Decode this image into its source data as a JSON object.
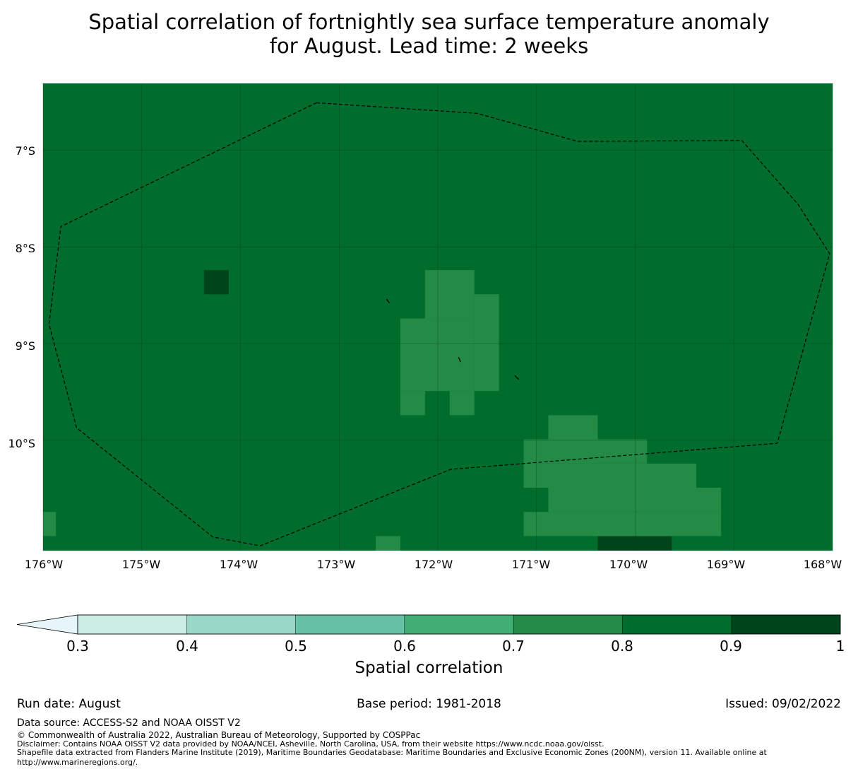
{
  "title": {
    "line1": "Spatial correlation of fortnightly sea surface temperature anomaly",
    "line2": "for August. Lead time: 2 weeks"
  },
  "map": {
    "lon_range": [
      -176,
      -168
    ],
    "lat_range": [
      -11.14,
      -6.31
    ],
    "grid_cell_deg": 0.25,
    "background_value_range": [
      0.8,
      0.9
    ],
    "lat_labels": [
      "7°S",
      "8°S",
      "9°S",
      "10°S"
    ],
    "lon_labels": [
      "176°W",
      "175°W",
      "174°W",
      "173°W",
      "172°W",
      "171°W",
      "170°W",
      "169°W",
      "168°W"
    ],
    "cells": [
      {
        "lon": [
          -174.37,
          -174.12
        ],
        "lat": [
          -8.49,
          -8.24
        ],
        "class": "0.9-1"
      },
      {
        "lon": [
          -172.13,
          -171.63
        ],
        "lat": [
          -8.74,
          -8.24
        ],
        "class": "0.7-0.8"
      },
      {
        "lon": [
          -171.63,
          -171.38
        ],
        "lat": [
          -9.49,
          -8.49
        ],
        "class": "0.7-0.8"
      },
      {
        "lon": [
          -172.38,
          -171.63
        ],
        "lat": [
          -9.49,
          -8.74
        ],
        "class": "0.7-0.8"
      },
      {
        "lon": [
          -172.38,
          -172.13
        ],
        "lat": [
          -9.74,
          -9.49
        ],
        "class": "0.7-0.8"
      },
      {
        "lon": [
          -171.88,
          -171.63
        ],
        "lat": [
          -9.74,
          -9.49
        ],
        "class": "0.7-0.8"
      },
      {
        "lon": [
          -170.88,
          -170.38
        ],
        "lat": [
          -9.99,
          -9.74
        ],
        "class": "0.7-0.8"
      },
      {
        "lon": [
          -171.13,
          -169.88
        ],
        "lat": [
          -10.24,
          -9.99
        ],
        "class": "0.7-0.8"
      },
      {
        "lon": [
          -171.13,
          -169.38
        ],
        "lat": [
          -10.49,
          -10.24
        ],
        "class": "0.7-0.8"
      },
      {
        "lon": [
          -170.88,
          -169.13
        ],
        "lat": [
          -10.74,
          -10.49
        ],
        "class": "0.7-0.8"
      },
      {
        "lon": [
          -171.13,
          -169.13
        ],
        "lat": [
          -10.99,
          -10.74
        ],
        "class": "0.7-0.8"
      },
      {
        "lon": [
          -170.38,
          -169.88
        ],
        "lat": [
          -11.14,
          -10.99
        ],
        "class": "0.7-0.8"
      },
      {
        "lon": [
          -170.38,
          -169.63
        ],
        "lat": [
          -11.14,
          -10.99
        ],
        "class": "0.9-1"
      },
      {
        "lon": [
          -176.0,
          -175.87
        ],
        "lat": [
          -10.99,
          -10.74
        ],
        "class": "0.7-0.8"
      },
      {
        "lon": [
          -172.63,
          -172.38
        ],
        "lat": [
          -11.14,
          -10.99
        ],
        "class": "0.7-0.8"
      }
    ],
    "eez_boundary": [
      [
        -173.23,
        -6.51
      ],
      [
        -171.6,
        -6.62
      ],
      [
        -170.58,
        -6.91
      ],
      [
        -168.92,
        -6.9
      ],
      [
        -168.35,
        -7.56
      ],
      [
        -168.03,
        -8.07
      ],
      [
        -168.56,
        -10.03
      ],
      [
        -171.87,
        -10.3
      ],
      [
        -173.8,
        -11.09
      ],
      [
        -174.28,
        -11.0
      ],
      [
        -175.66,
        -9.87
      ],
      [
        -175.94,
        -8.8
      ],
      [
        -175.82,
        -7.79
      ],
      [
        -173.23,
        -6.51
      ]
    ],
    "islands": [
      {
        "lon": [
          -172.52,
          -172.49
        ],
        "lat": [
          -8.54,
          -8.58
        ]
      },
      {
        "lon": [
          -171.79,
          -171.77
        ],
        "lat": [
          -9.14,
          -9.19
        ]
      },
      {
        "lon": [
          -171.22,
          -171.18
        ],
        "lat": [
          -9.33,
          -9.37
        ]
      }
    ]
  },
  "colorbar": {
    "title": "Spatial correlation",
    "boundaries": [
      0.3,
      0.4,
      0.5,
      0.6,
      0.7,
      0.8,
      0.9,
      1
    ],
    "tick_labels": [
      "0.3",
      "0.4",
      "0.5",
      "0.6",
      "0.7",
      "0.8",
      "0.9",
      "1"
    ],
    "colors": [
      "#ccece6",
      "#99d8c9",
      "#66c2a4",
      "#41ae76",
      "#238b45",
      "#006d2c",
      "#00441b"
    ],
    "extend_color": "#e5f5f9",
    "extend": "min"
  },
  "meta": {
    "run_date": "Run date: August",
    "base_period": "Base period: 1981-2018",
    "issued": "Issued: 09/02/2022"
  },
  "footer": {
    "data_source": "Data source: ACCESS-S2 and NOAA OISST V2",
    "copyright": "© Commonwealth of Australia 2022, Australian Bureau of Meteorology, Supported by COSPPac",
    "disclaimer": "Disclaimer: Contains NOAA OISST V2 data provided by NOAA/NCEI, Asheville, North Carolina, USA, from their website https://www.ncdc.noaa.gov/oisst.",
    "shapefile_line1": "Shapefile data extracted from Flanders Marine Institute (2019), Maritime Boundaries Geodatabase: Maritime Boundaries and Exclusive Economic Zones (200NM), version 11. Available online at",
    "shapefile_line2": "http://www.marineregions.org/."
  }
}
